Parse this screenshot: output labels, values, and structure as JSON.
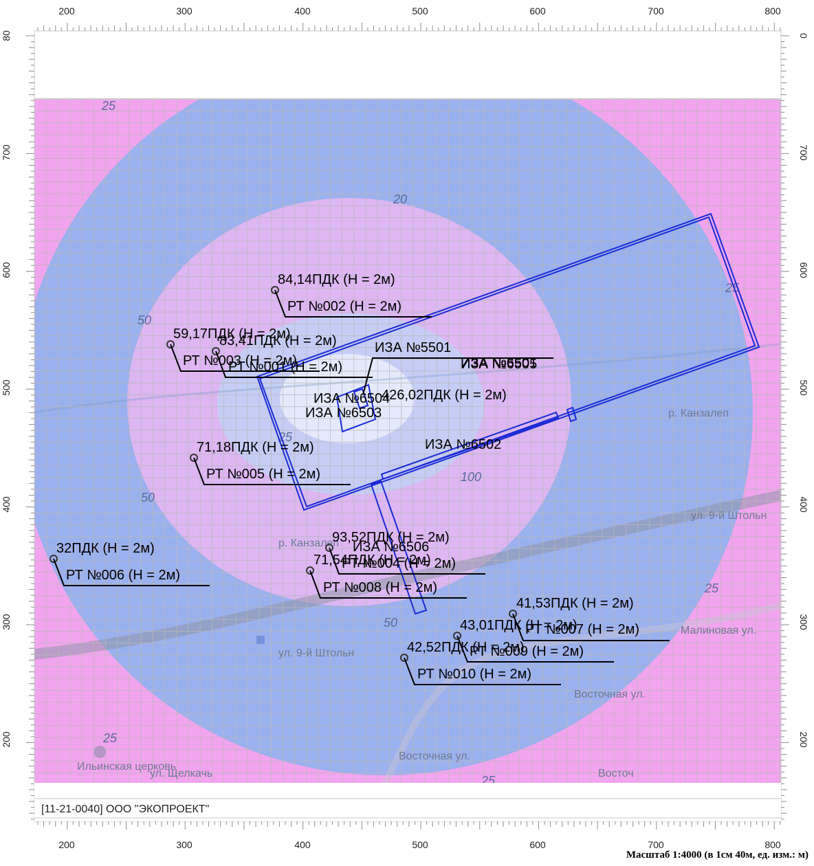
{
  "axes": {
    "x_ticks": [
      "200",
      "300",
      "400",
      "500",
      "600",
      "700",
      "800"
    ],
    "y_ticks": [
      "80",
      "700",
      "600",
      "500",
      "400",
      "300",
      "200"
    ],
    "y_ticks_right": [
      "0",
      "700",
      "600",
      "500",
      "400",
      "300",
      "200"
    ]
  },
  "footer": {
    "organization": "[11-21-0040] ООО \"ЭКОПРОЕКТ\"",
    "scale": "Масштаб 1:4000 (в 1см 40м, ед. изм.: м)"
  },
  "isolines": [
    "25",
    "20",
    "25",
    "50",
    "100",
    "50",
    "50",
    "25",
    "25",
    "25",
    "25",
    "100",
    "25"
  ],
  "streets": [
    "ул. 9-й Штольн",
    "ул. 9-й Штольн",
    "р. Канзалеп",
    "р. Канзалеп",
    "Восточная ул.",
    "Восточная ул.",
    "Малиновая ул.",
    "ул. Щелкачь",
    "Ильинская церковь",
    "Восточ",
    "Малин"
  ],
  "receptors": [
    {
      "id": "rt002",
      "value": "84,14ПДК (Н = 2м)",
      "name": "РТ №002 (Н = 2м)"
    },
    {
      "id": "rt003",
      "value": "59,17ПДК (Н = 2м)",
      "name": "РТ №003 (Н = 2м)"
    },
    {
      "id": "rt001",
      "value": "83,41ПДК (Н = 2м)",
      "name": "РТ №001 (Н = 2м)"
    },
    {
      "id": "rt005",
      "value": "71,18ПДК (Н = 2м)",
      "name": "РТ №005 (Н = 2м)"
    },
    {
      "id": "rt006",
      "value": "32ПДК (Н = 2м)",
      "name": "РТ №006 (Н = 2м)"
    },
    {
      "id": "rt004",
      "value": "93,52ПДК (Н = 2м)",
      "name": "РТ №004 (Н = 2м)"
    },
    {
      "id": "rt008",
      "value": "71,54ПДК (Н = 2м)",
      "name": "РТ №008 (Н = 2м)"
    },
    {
      "id": "rt007",
      "value": "41,53ПДК (Н = 2м)",
      "name": "РТ №007 (Н = 2м)"
    },
    {
      "id": "rt009",
      "value": "43,01ПДК (Н = 2м)",
      "name": "РТ №009 (Н = 2м)"
    },
    {
      "id": "rt010",
      "value": "42,52ПДК (Н = 2м)",
      "name": "РТ №010 (Н = 2м)"
    }
  ],
  "sources": {
    "iza5501": "ИЗА №5501",
    "iza6501": "ИЗА №6501",
    "iza6505": "ИЗА №6505",
    "iza6504": "ИЗА №6504",
    "iza6503": "ИЗА №6503",
    "iza6502": "ИЗА №6502",
    "iza6506": "ИЗА №6506",
    "max": "426,02ПДК (Н = 2м)"
  }
}
